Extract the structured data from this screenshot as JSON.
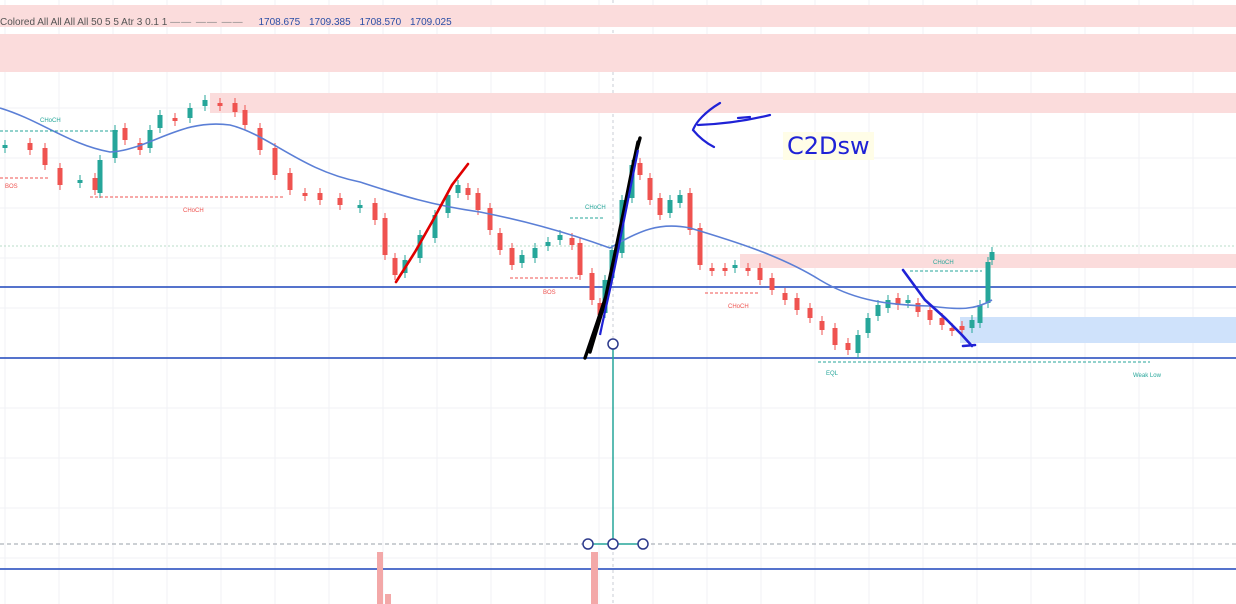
{
  "indicator_legend": {
    "name": "Colored All All All All 50 5 5 Atr 3 0.1 1",
    "dashes": "—— —— ——",
    "values": [
      "1708.675",
      "1709.385",
      "1708.570",
      "1709.025"
    ]
  },
  "annotation_text": "C2Dsw",
  "colors": {
    "bull": "#26a69a",
    "bear": "#ef5350",
    "ema": "#5b7fd6",
    "hline": "#3d5fc4",
    "zone_red": "#fbdcdc",
    "zone_blue": "#cfe2fb",
    "pen_red": "#e00000",
    "pen_black": "#000000",
    "pen_blue": "#1f22d6"
  },
  "chart_data": {
    "type": "candlestick",
    "labels": [
      {
        "text": "CHoCH",
        "color": "#26a69a"
      },
      {
        "text": "BOS",
        "color": "#ef5350"
      },
      {
        "text": "CHoCH",
        "color": "#ef5350"
      },
      {
        "text": "CHoCH",
        "color": "#26a69a"
      },
      {
        "text": "BOS",
        "color": "#ef5350"
      },
      {
        "text": "CHoCH",
        "color": "#ef5350"
      },
      {
        "text": "CHoCH",
        "color": "#26a69a"
      },
      {
        "text": "EQL",
        "color": "#26a69a"
      },
      {
        "text": "Weak Low",
        "color": "#26a69a"
      }
    ],
    "grid": true
  }
}
